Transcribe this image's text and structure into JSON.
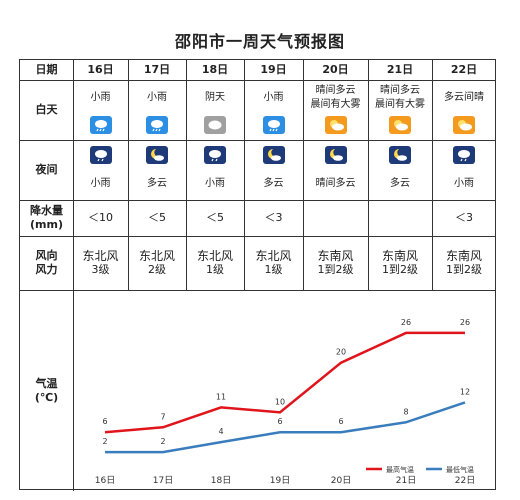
{
  "title": "邵阳市一周天气预报图",
  "row_labels": {
    "date": "日期",
    "day": "白天",
    "night": "夜间",
    "precip": "降水量\n(mm)",
    "wind": "风向\n风力",
    "temp": "气温\n(℃)"
  },
  "days": [
    {
      "date": "16日",
      "day_weather": "小雨",
      "day_icon": "rain-icon",
      "night_icon": "night-rain-icon",
      "night_weather": "小雨",
      "precip": "＜10",
      "wind_dir": "东北风",
      "wind_level": "3级"
    },
    {
      "date": "17日",
      "day_weather": "小雨",
      "day_icon": "rain-icon",
      "night_icon": "night-moon-cloud-icon",
      "night_weather": "多云",
      "precip": "＜5",
      "wind_dir": "东北风",
      "wind_level": "2级"
    },
    {
      "date": "18日",
      "day_weather": "阴天",
      "day_icon": "overcast-icon",
      "night_icon": "night-rain-icon",
      "night_weather": "小雨",
      "precip": "＜5",
      "wind_dir": "东北风",
      "wind_level": "1级"
    },
    {
      "date": "19日",
      "day_weather": "小雨",
      "day_icon": "rain-icon",
      "night_icon": "night-moon-cloud-icon",
      "night_weather": "多云",
      "precip": "＜3",
      "wind_dir": "东北风",
      "wind_level": "1级"
    },
    {
      "date": "20日",
      "day_weather": "晴间多云\n晨间有大雾",
      "day_icon": "sun-cloud-icon",
      "night_icon": "night-moon-cloud-icon",
      "night_weather": "晴间多云",
      "precip": "",
      "wind_dir": "东南风",
      "wind_level": "1到2级"
    },
    {
      "date": "21日",
      "day_weather": "晴间多云\n晨间有大雾",
      "day_icon": "sun-cloud-icon",
      "night_icon": "night-moon-cloud-icon",
      "night_weather": "多云",
      "precip": "",
      "wind_dir": "东南风",
      "wind_level": "1到2级"
    },
    {
      "date": "22日",
      "day_weather": "多云间晴",
      "day_icon": "sun-cloud-icon",
      "night_icon": "night-rain-icon",
      "night_weather": "小雨",
      "precip": "＜3",
      "wind_dir": "东南风",
      "wind_level": "1到2级"
    }
  ],
  "colors": {
    "high": "#e0141b",
    "low": "#3a7dbd",
    "rain": "#2d8fe3",
    "sunny": "#f39a1f",
    "night": "#1e3a78",
    "overcast": "#a0a0a0"
  },
  "chart_data": {
    "type": "line",
    "x": [
      "16日",
      "17日",
      "18日",
      "19日",
      "20日",
      "21日",
      "22日"
    ],
    "series": [
      {
        "name": "最高气温",
        "values": [
          6,
          7,
          11,
          10,
          20,
          26,
          26
        ]
      },
      {
        "name": "最低气温",
        "values": [
          2,
          2,
          4,
          6,
          6,
          8,
          12
        ]
      }
    ],
    "ylim": [
      0,
      28
    ],
    "grid": false,
    "legend": "bottom-right"
  }
}
